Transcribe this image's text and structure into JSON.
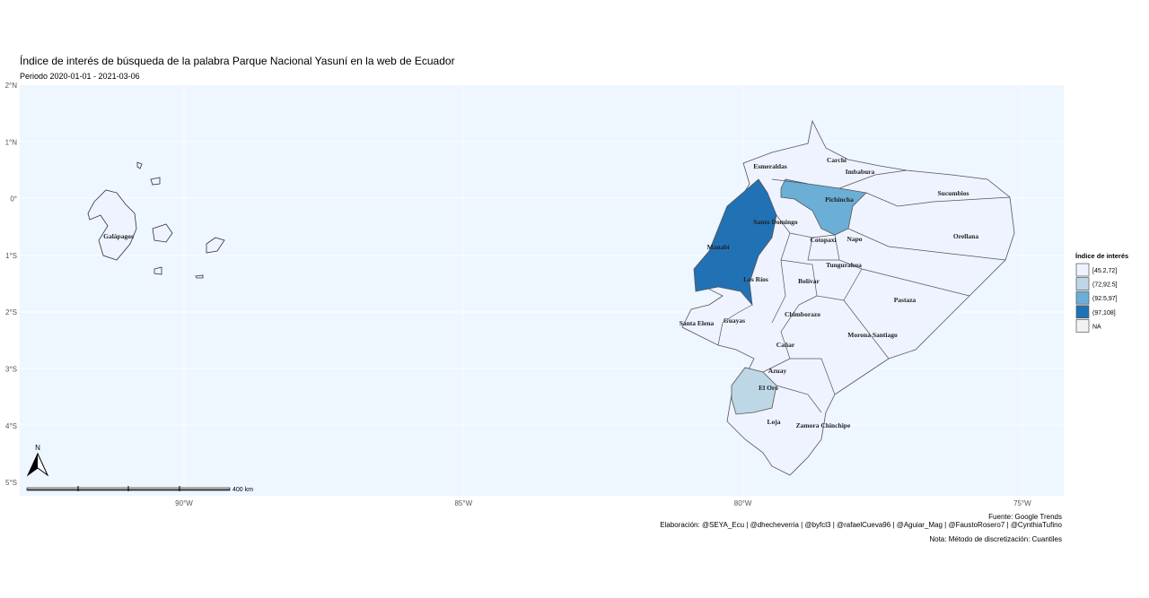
{
  "header": {
    "title": "Índice de interés de búsqueda de la palabra Parque Nacional Yasuní en la web de Ecuador",
    "subtitle": "Periodo 2020-01-01 - 2021-03-06"
  },
  "axes": {
    "y_labels": [
      "2°N",
      "1°N",
      "0°",
      "1°S",
      "2°S",
      "3°S",
      "4°S",
      "5°S"
    ],
    "x_labels": [
      "90°W",
      "85°W",
      "80°W",
      "75°W"
    ]
  },
  "legend": {
    "title": "Índice de interés",
    "items": [
      {
        "label": "[45.2,72]",
        "color": "#eff3ff"
      },
      {
        "label": "(72,92.5]",
        "color": "#bdd7e7"
      },
      {
        "label": "(92.5,97]",
        "color": "#6baed6"
      },
      {
        "label": "(97,108]",
        "color": "#2171b5"
      },
      {
        "label": "NA",
        "color": "#f2f2f2"
      }
    ]
  },
  "provinces": [
    "Esmeraldas",
    "Carchi",
    "Imbabura",
    "Sucumbios",
    "Pichincha",
    "Santo Domingo",
    "Manabí",
    "Cotopaxi",
    "Napo",
    "Orellana",
    "Tungurahua",
    "Los Ríos",
    "Bolívar",
    "Pastaza",
    "Chimborazo",
    "Santa Elena",
    "Guayas",
    "Cañar",
    "Morona Santiago",
    "Azuay",
    "El Oro",
    "Loja",
    "Zamora Chinchipe",
    "Galápagos"
  ],
  "scale": {
    "north": "N",
    "distance": "400 km"
  },
  "footer": {
    "source": "Fuente: Google Trends",
    "credits": "Elaboración:  @SEYA_Ecu | @dhecheverria | @byfcl3 | @rafaelCueva96 | @Aguiar_Mag | @FaustoRosero7 | @CynthiaTufino",
    "note": "Nota: Método de discretización: Cuantiles"
  }
}
